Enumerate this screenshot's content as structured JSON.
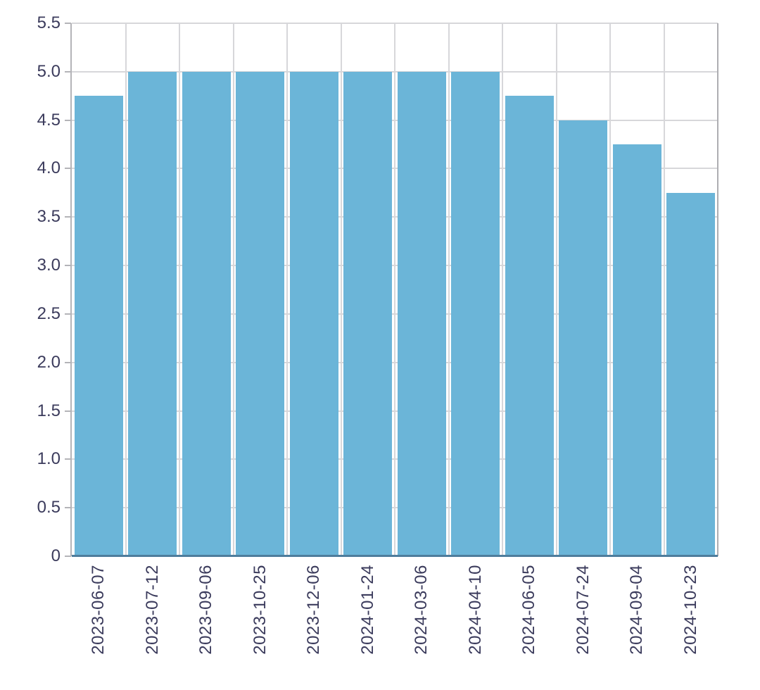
{
  "chart_data": {
    "type": "bar",
    "categories": [
      "2023-06-07",
      "2023-07-12",
      "2023-09-06",
      "2023-10-25",
      "2023-12-06",
      "2024-01-24",
      "2024-03-06",
      "2024-04-10",
      "2024-06-05",
      "2024-07-24",
      "2024-09-04",
      "2024-10-23"
    ],
    "values": [
      4.75,
      5.0,
      5.0,
      5.0,
      5.0,
      5.0,
      5.0,
      5.0,
      4.75,
      4.5,
      4.25,
      3.75
    ],
    "title": "",
    "xlabel": "",
    "ylabel": "",
    "ylim": [
      0,
      5.5
    ],
    "yticks": [
      0,
      0.5,
      1.0,
      1.5,
      2.0,
      2.5,
      3.0,
      3.5,
      4.0,
      4.5,
      5.0,
      5.5
    ],
    "ytick_labels": [
      "0",
      "0.5",
      "1.0",
      "1.5",
      "2.0",
      "2.5",
      "3.0",
      "3.5",
      "4.0",
      "4.5",
      "5.0",
      "5.5"
    ],
    "grid": true,
    "legend": "none",
    "colors": {
      "bar_fill": "#6bb5d8",
      "gridline": "#d7d7da",
      "left_spine": "#b4b4b8",
      "right_spine": "#aeaeb2",
      "bottom_spine": "#4e7d9c",
      "tick_mark": "#b4b4b8",
      "tick_label_text": "#3b3b5c",
      "background": "#ffffff"
    }
  }
}
